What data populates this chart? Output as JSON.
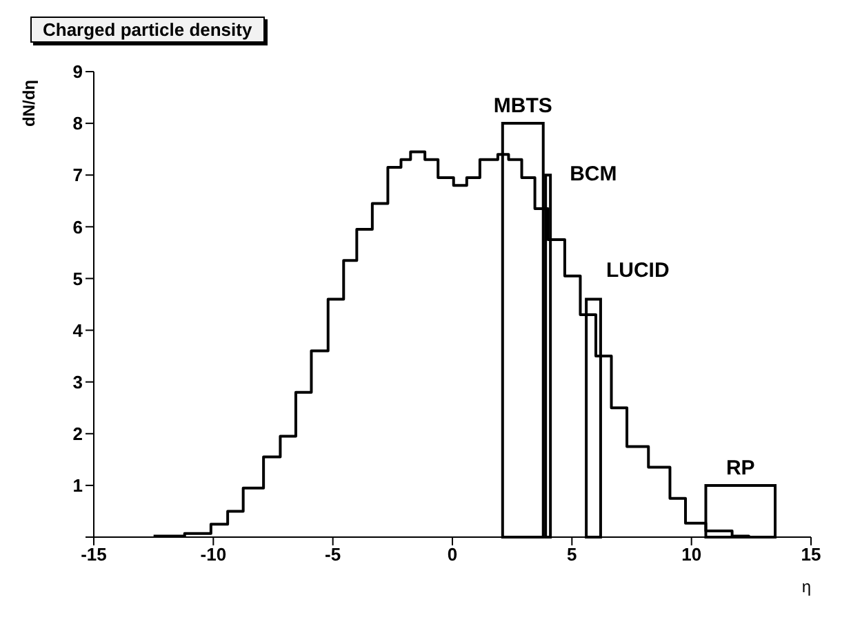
{
  "chart_data": {
    "type": "step",
    "title": "Charged particle density",
    "xlabel": "η",
    "ylabel": "dN/dη",
    "xlim": [
      -15,
      15
    ],
    "xticks": [
      -15,
      -10,
      -5,
      0,
      5,
      10,
      15
    ],
    "ylim": [
      0,
      9
    ],
    "yticks": [
      {
        "value": 0,
        "label": null
      },
      1,
      2,
      3,
      4,
      5,
      6,
      7,
      8,
      9
    ],
    "grid": false,
    "legend": false,
    "series": [
      {
        "color": "#000000",
        "x": [
          -12.5,
          -11.2,
          -10.1,
          -9.4,
          -8.75,
          -7.9,
          -7.2,
          -6.55,
          -5.9,
          -5.2,
          -4.55,
          -4.0,
          -3.35,
          -2.7,
          -2.15,
          -1.75,
          -1.15,
          -0.6,
          0.05,
          0.6,
          1.15,
          1.9,
          2.35,
          2.9,
          3.45,
          4.0,
          4.7,
          5.35,
          6.0,
          6.65,
          7.3,
          8.2,
          9.1,
          9.75,
          10.6,
          11.7,
          12.4
        ],
        "values": [
          0.02,
          0.07,
          0.25,
          0.5,
          0.95,
          1.55,
          1.95,
          2.8,
          3.6,
          4.6,
          5.35,
          5.95,
          6.45,
          7.15,
          7.3,
          7.45,
          7.3,
          6.95,
          6.8,
          6.95,
          7.3,
          7.4,
          7.3,
          6.95,
          6.35,
          5.75,
          5.05,
          4.3,
          3.5,
          2.5,
          1.75,
          1.35,
          0.75,
          0.27,
          0.12,
          0.02,
          0
        ]
      },
      {
        "type": "histogram",
        "color": "#000000",
        "bins": [
          2.1,
          3.8,
          3.9,
          4.1,
          5.6,
          6.2,
          10.6,
          13.5
        ],
        "values": [
          8,
          0,
          7,
          0,
          4.6,
          0,
          1
        ]
      }
    ],
    "annotations": [
      "MBTS",
      "BCM",
      "LUCID",
      "RP"
    ]
  }
}
